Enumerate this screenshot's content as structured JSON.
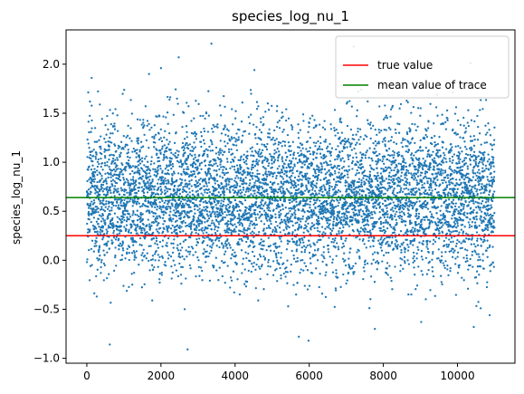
{
  "chart_data": {
    "type": "scatter",
    "title": "species_log_nu_1",
    "xlabel": "",
    "ylabel": "species_log_nu_1",
    "xlim": [
      -560,
      11550
    ],
    "ylim": [
      -1.05,
      2.35
    ],
    "x_ticks": [
      0,
      2000,
      4000,
      6000,
      8000,
      10000
    ],
    "x_tick_labels": [
      "0",
      "2000",
      "4000",
      "6000",
      "8000",
      "10000"
    ],
    "y_ticks": [
      -1.0,
      -0.5,
      0.0,
      0.5,
      1.0,
      1.5,
      2.0
    ],
    "y_tick_labels": [
      "−1.0",
      "−0.5",
      "0.0",
      "0.5",
      "1.0",
      "1.5",
      "2.0"
    ],
    "grid": false,
    "legend_position": "top-right",
    "trace": {
      "name": "",
      "color": "#1f77b4",
      "n_points": 11000,
      "x_range": [
        0,
        11000
      ],
      "mean": 0.64,
      "sd": 0.38,
      "min": -0.91,
      "max": 2.21
    },
    "outliers": [
      {
        "x": 620,
        "y": -0.86
      },
      {
        "x": 2720,
        "y": -0.91
      },
      {
        "x": 3360,
        "y": 2.21
      },
      {
        "x": 2480,
        "y": 2.07
      },
      {
        "x": 5720,
        "y": -0.78
      },
      {
        "x": 5980,
        "y": -0.82
      },
      {
        "x": 7770,
        "y": -0.7
      },
      {
        "x": 9020,
        "y": -0.63
      },
      {
        "x": 10440,
        "y": -0.68
      },
      {
        "x": 10870,
        "y": -0.56
      },
      {
        "x": 7200,
        "y": 2.18
      },
      {
        "x": 10350,
        "y": 2.01
      },
      {
        "x": 2000,
        "y": 1.96
      },
      {
        "x": 4520,
        "y": 1.94
      },
      {
        "x": 130,
        "y": 1.86
      },
      {
        "x": 1680,
        "y": 1.9
      }
    ],
    "lines": [
      {
        "label": "true value",
        "y": 0.25,
        "color": "#ff0000"
      },
      {
        "label": "mean value of trace",
        "y": 0.64,
        "color": "#008000"
      }
    ]
  }
}
